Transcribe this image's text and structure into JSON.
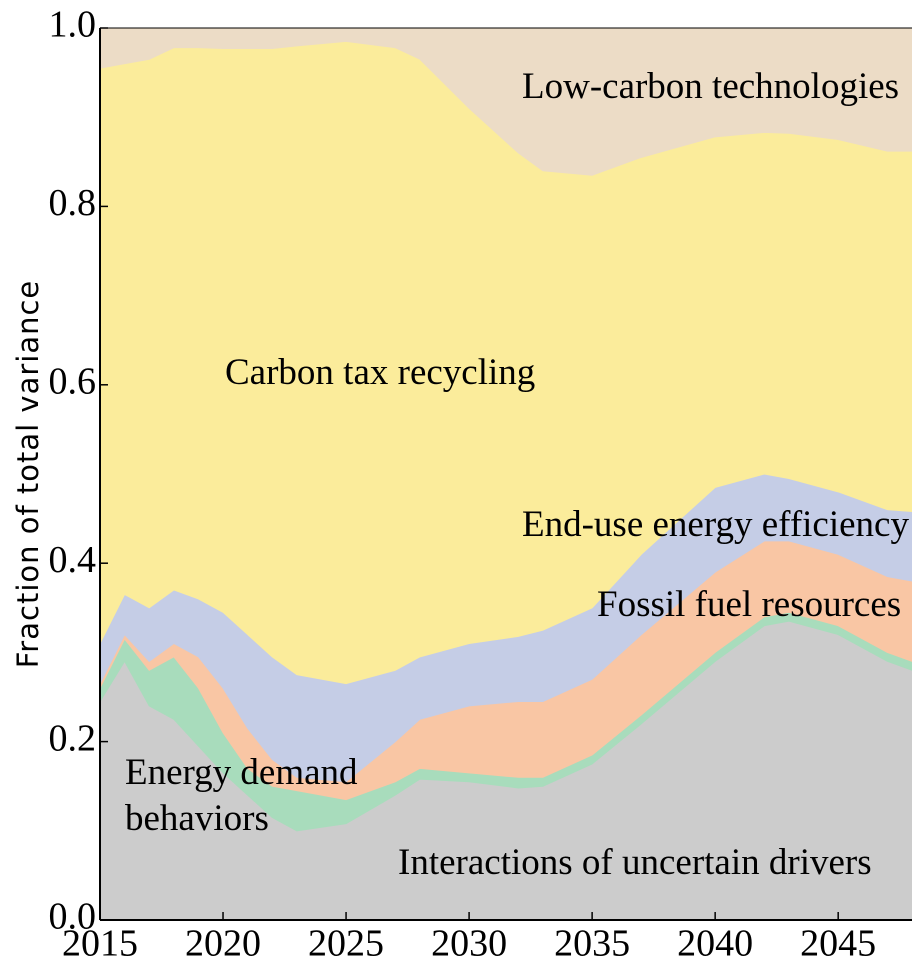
{
  "chart_data": {
    "type": "stacked_area",
    "y_label": "Fraction of total variance",
    "x": [
      2015,
      2016,
      2017,
      2018,
      2019,
      2020,
      2021,
      2022,
      2023,
      2025,
      2027,
      2028,
      2030,
      2032,
      2033,
      2035,
      2037,
      2040,
      2042,
      2043,
      2045,
      2047,
      2048
    ],
    "series": [
      {
        "name": "Interactions of uncertain drivers",
        "color": "#cccccc",
        "values": [
          0.245,
          0.29,
          0.24,
          0.225,
          0.195,
          0.165,
          0.14,
          0.115,
          0.1,
          0.108,
          0.14,
          0.158,
          0.155,
          0.148,
          0.15,
          0.175,
          0.22,
          0.29,
          0.33,
          0.335,
          0.32,
          0.29,
          0.28
        ]
      },
      {
        "name": "Energy demand behaviors",
        "color": "#a8dcbc",
        "values": [
          0.015,
          0.025,
          0.04,
          0.07,
          0.065,
          0.045,
          0.03,
          0.035,
          0.045,
          0.027,
          0.015,
          0.012,
          0.01,
          0.012,
          0.01,
          0.01,
          0.01,
          0.01,
          0.01,
          0.01,
          0.01,
          0.01,
          0.01
        ]
      },
      {
        "name": "Fossil fuel resources",
        "color": "#f9c6a4",
        "values": [
          0.005,
          0.005,
          0.01,
          0.015,
          0.035,
          0.05,
          0.045,
          0.03,
          0.015,
          0.02,
          0.045,
          0.055,
          0.075,
          0.085,
          0.085,
          0.085,
          0.09,
          0.09,
          0.085,
          0.08,
          0.08,
          0.085,
          0.09
        ]
      },
      {
        "name": "End-use energy efficiency",
        "color": "#c5cde6",
        "values": [
          0.045,
          0.045,
          0.06,
          0.06,
          0.065,
          0.085,
          0.105,
          0.115,
          0.115,
          0.11,
          0.08,
          0.07,
          0.07,
          0.073,
          0.08,
          0.08,
          0.09,
          0.095,
          0.075,
          0.07,
          0.07,
          0.075,
          0.078
        ]
      },
      {
        "name": "Carbon tax recycling",
        "color": "#fbec9b",
        "values": [
          0.645,
          0.595,
          0.615,
          0.608,
          0.618,
          0.632,
          0.657,
          0.682,
          0.705,
          0.72,
          0.698,
          0.67,
          0.6,
          0.542,
          0.515,
          0.485,
          0.445,
          0.393,
          0.383,
          0.387,
          0.395,
          0.402,
          0.404
        ]
      },
      {
        "name": "Low-carbon technologies",
        "color": "#ecdcc6",
        "values": [
          0.045,
          0.04,
          0.035,
          0.022,
          0.022,
          0.023,
          0.023,
          0.023,
          0.02,
          0.015,
          0.022,
          0.035,
          0.09,
          0.14,
          0.16,
          0.165,
          0.145,
          0.122,
          0.117,
          0.118,
          0.125,
          0.138,
          0.138
        ]
      }
    ],
    "xlim": [
      2015,
      2048
    ],
    "ylim": [
      0,
      1
    ],
    "xticks": [
      2015,
      2020,
      2025,
      2030,
      2035,
      2040,
      2045
    ],
    "yticks": [
      {
        "value": 0,
        "label": "0.0"
      },
      {
        "value": 0.2,
        "label": "0.2"
      },
      {
        "value": 0.4,
        "label": "0.4"
      },
      {
        "value": 0.6,
        "label": "0.6"
      },
      {
        "value": 0.8,
        "label": "0.8"
      },
      {
        "value": 1,
        "label": "1.0"
      }
    ]
  }
}
